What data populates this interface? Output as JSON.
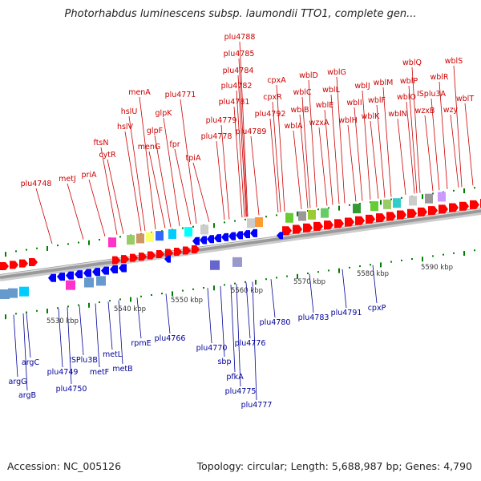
{
  "title": "Photorhabdus luminescens subsp. laumondii TTO1, complete gen...",
  "footer": {
    "accession": "Accession: NC_005126",
    "topology": "Topology: circular; Length: 5,688,987 bp; Genes: 4,790"
  },
  "colors": {
    "forward_gene": "#ff0000",
    "reverse_gene": "#0000ff",
    "forward_label": "#cc0000",
    "reverse_label": "#000099",
    "backbone": "#999999",
    "tick": "#008000"
  },
  "scale_labels": [
    "5530 kbp",
    "5540 kbp",
    "5550 kbp",
    "5560 kbp",
    "5570 kbp",
    "5580 kbp",
    "5590 kbp"
  ],
  "forward_labels": [
    "plu4748",
    "metJ",
    "priA",
    "cytR",
    "ftsN",
    "hslV",
    "hslU",
    "menA",
    "menG",
    "glpF",
    "glpK",
    "fpr",
    "plu4771",
    "tpiA",
    "plu4778",
    "plu4779",
    "plu4781",
    "plu4782",
    "plu4784",
    "plu4785",
    "plu4788",
    "plu4789",
    "plu4792",
    "cpxR",
    "cpxA",
    "wblA",
    "wblB",
    "wblC",
    "wblD",
    "wzxA",
    "wblE",
    "wblL",
    "wblG",
    "wblH",
    "wblI",
    "wblJ",
    "wblK",
    "wblF",
    "wblM",
    "wblN",
    "wblO",
    "wblP",
    "wblQ",
    "wzxB",
    "ISplu3A",
    "wblR",
    "wzy",
    "wblS",
    "wblT"
  ],
  "reverse_labels": [
    "argG",
    "argB",
    "argC",
    "plu4749",
    "plu4750",
    "ISPlu3B",
    "metF",
    "metL",
    "metB",
    "rpmE",
    "plu4766",
    "plu4770",
    "sbp",
    "pfkA",
    "plu4775",
    "plu4776",
    "plu4777",
    "plu4780",
    "plu4783",
    "plu4791",
    "cpxP"
  ]
}
